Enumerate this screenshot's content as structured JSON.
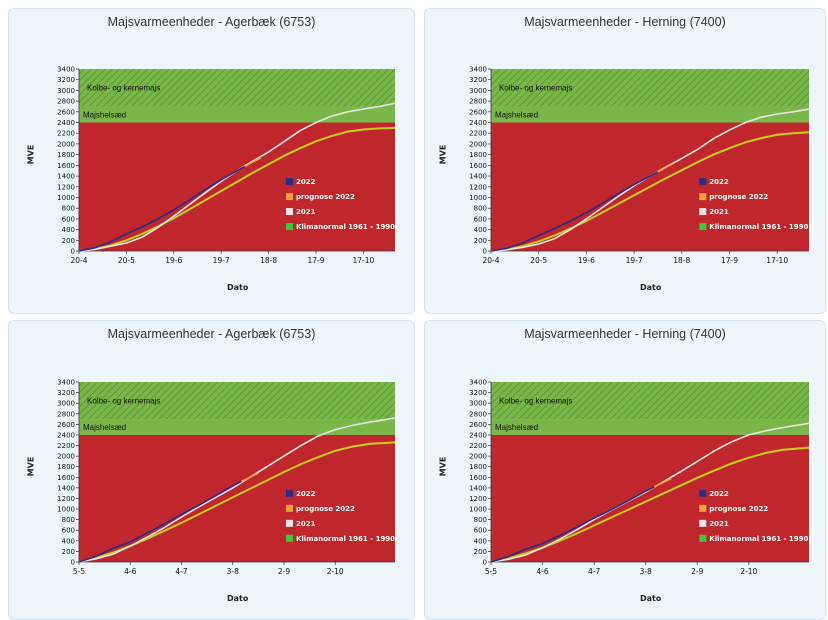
{
  "colors": {
    "zone_red": "#c0272d",
    "zone_green": "#7ab648",
    "zone_hatch": "#5a9a3a",
    "series_2022": "#2b2a86",
    "series_prognose": "#f5a040",
    "series_2021": "#e6e6e6",
    "series_normal": "#c9cc1d",
    "legend_normal": "#33cc33"
  },
  "zones": {
    "upper_label": "Kolbe- og kernemajs",
    "lower_label": "Majshelsæd"
  },
  "chart_data": [
    {
      "type": "line",
      "title": "Majsvarmeenheder - Agerbæk (6753)",
      "xlabel": "Dato",
      "ylabel": "MVE",
      "ylim": [
        0,
        3400
      ],
      "yticks": [
        0,
        200,
        400,
        600,
        800,
        1000,
        1200,
        1400,
        1600,
        1800,
        2000,
        2200,
        2400,
        2600,
        2800,
        3000,
        3200,
        3400
      ],
      "xticks": [
        "20-4",
        "20-5",
        "19-6",
        "19-7",
        "18-8",
        "17-9",
        "17-10"
      ],
      "xtick_days": [
        0,
        30,
        60,
        90,
        120,
        150,
        180
      ],
      "xlim_days": [
        0,
        200
      ],
      "zone_bounds": [
        2400,
        2700
      ],
      "legend": [
        "2022",
        "prognose 2022",
        "2021",
        "Klimanormal 1961 - 1990"
      ],
      "series": [
        {
          "name": "2022",
          "x": [
            0,
            10,
            20,
            30,
            40,
            50,
            60,
            70,
            80,
            90,
            100,
            105
          ],
          "y": [
            0,
            60,
            170,
            320,
            450,
            600,
            770,
            950,
            1150,
            1330,
            1500,
            1580
          ]
        },
        {
          "name": "prognose 2022",
          "x": [
            105,
            110,
            115
          ],
          "y": [
            1580,
            1660,
            1740
          ]
        },
        {
          "name": "2021",
          "x": [
            0,
            10,
            20,
            30,
            40,
            50,
            60,
            70,
            80,
            90,
            100,
            110,
            120,
            130,
            140,
            150,
            160,
            170,
            180,
            190,
            200
          ],
          "y": [
            0,
            30,
            90,
            150,
            260,
            440,
            650,
            870,
            1090,
            1300,
            1500,
            1680,
            1850,
            2050,
            2250,
            2400,
            2520,
            2600,
            2650,
            2700,
            2760
          ]
        },
        {
          "name": "Klimanormal 1961 - 1990",
          "x": [
            0,
            10,
            20,
            30,
            40,
            50,
            60,
            70,
            80,
            90,
            100,
            110,
            120,
            130,
            140,
            150,
            160,
            170,
            180,
            190,
            200
          ],
          "y": [
            0,
            40,
            100,
            200,
            320,
            460,
            610,
            780,
            950,
            1120,
            1290,
            1460,
            1620,
            1780,
            1920,
            2050,
            2150,
            2230,
            2270,
            2290,
            2300
          ]
        }
      ]
    },
    {
      "type": "line",
      "title": "Majsvarmeenheder - Herning (7400)",
      "xlabel": "Dato",
      "ylabel": "MVE",
      "ylim": [
        0,
        3400
      ],
      "yticks": [
        0,
        200,
        400,
        600,
        800,
        1000,
        1200,
        1400,
        1600,
        1800,
        2000,
        2200,
        2400,
        2600,
        2800,
        3000,
        3200,
        3400
      ],
      "xticks": [
        "20-4",
        "20-5",
        "19-6",
        "19-7",
        "18-8",
        "17-9",
        "17-10"
      ],
      "xtick_days": [
        0,
        30,
        60,
        90,
        120,
        150,
        180
      ],
      "xlim_days": [
        0,
        200
      ],
      "zone_bounds": [
        2400,
        2700
      ],
      "legend": [
        "2022",
        "prognose 2022",
        "2021",
        "Klimanormal 1961 - 1990"
      ],
      "series": [
        {
          "name": "2022",
          "x": [
            0,
            10,
            20,
            30,
            40,
            50,
            60,
            70,
            80,
            90,
            100,
            105
          ],
          "y": [
            0,
            50,
            150,
            290,
            420,
            560,
            720,
            890,
            1070,
            1240,
            1400,
            1480
          ]
        },
        {
          "name": "prognose 2022",
          "x": [
            105,
            110,
            115
          ],
          "y": [
            1480,
            1560,
            1640
          ]
        },
        {
          "name": "2021",
          "x": [
            0,
            10,
            20,
            30,
            40,
            50,
            60,
            70,
            80,
            90,
            100,
            110,
            120,
            130,
            140,
            150,
            160,
            170,
            180,
            190,
            200
          ],
          "y": [
            0,
            20,
            70,
            130,
            230,
            400,
            600,
            810,
            1020,
            1220,
            1400,
            1570,
            1730,
            1900,
            2100,
            2260,
            2400,
            2500,
            2560,
            2600,
            2650
          ]
        },
        {
          "name": "Klimanormal 1961 - 1990",
          "x": [
            0,
            10,
            20,
            30,
            40,
            50,
            60,
            70,
            80,
            90,
            100,
            110,
            120,
            130,
            140,
            150,
            160,
            170,
            180,
            190,
            200
          ],
          "y": [
            0,
            30,
            90,
            180,
            290,
            420,
            560,
            720,
            880,
            1040,
            1200,
            1360,
            1510,
            1660,
            1800,
            1920,
            2030,
            2110,
            2170,
            2200,
            2220
          ]
        }
      ]
    },
    {
      "type": "line",
      "title": "Majsvarmeenheder - Agerbæk (6753)",
      "xlabel": "Dato",
      "ylabel": "MVE",
      "ylim": [
        0,
        3400
      ],
      "yticks": [
        0,
        200,
        400,
        600,
        800,
        1000,
        1200,
        1400,
        1600,
        1800,
        2000,
        2200,
        2400,
        2600,
        2800,
        3000,
        3200,
        3400
      ],
      "xticks": [
        "5-5",
        "4-6",
        "4-7",
        "3-8",
        "2-9",
        "2-10"
      ],
      "xtick_days": [
        0,
        30,
        60,
        90,
        120,
        150
      ],
      "xlim_days": [
        0,
        185
      ],
      "zone_bounds": [
        2400,
        2700
      ],
      "legend": [
        "2022",
        "prognose 2022",
        "2021",
        "Klimanormal 1961 - 1990"
      ],
      "series": [
        {
          "name": "2022",
          "x": [
            0,
            10,
            20,
            30,
            40,
            50,
            60,
            70,
            80,
            90,
            95
          ],
          "y": [
            0,
            110,
            260,
            380,
            550,
            720,
            900,
            1070,
            1250,
            1440,
            1520
          ]
        },
        {
          "name": "prognose 2022",
          "x": [
            95,
            100,
            105
          ],
          "y": [
            1520,
            1600,
            1680
          ]
        },
        {
          "name": "2021",
          "x": [
            0,
            10,
            20,
            30,
            40,
            50,
            60,
            70,
            80,
            90,
            100,
            110,
            120,
            130,
            140,
            150,
            160,
            170,
            185
          ],
          "y": [
            0,
            60,
            150,
            300,
            470,
            650,
            850,
            1040,
            1220,
            1400,
            1600,
            1800,
            2000,
            2200,
            2380,
            2500,
            2580,
            2640,
            2720
          ]
        },
        {
          "name": "Klimanormal 1961 - 1990",
          "x": [
            0,
            10,
            20,
            30,
            40,
            50,
            60,
            70,
            80,
            90,
            100,
            110,
            120,
            130,
            140,
            150,
            160,
            170,
            185
          ],
          "y": [
            0,
            80,
            180,
            300,
            440,
            590,
            740,
            900,
            1060,
            1220,
            1380,
            1540,
            1700,
            1850,
            1980,
            2100,
            2180,
            2230,
            2260
          ]
        }
      ]
    },
    {
      "type": "line",
      "title": "Majsvarmeenheder - Herning (7400)",
      "xlabel": "Dato",
      "ylabel": "MVE",
      "ylim": [
        0,
        3400
      ],
      "yticks": [
        0,
        200,
        400,
        600,
        800,
        1000,
        1200,
        1400,
        1600,
        1800,
        2000,
        2200,
        2400,
        2600,
        2800,
        3000,
        3200,
        3400
      ],
      "xticks": [
        "5-5",
        "4-6",
        "4-7",
        "3-8",
        "2-9",
        "2-10"
      ],
      "xtick_days": [
        0,
        30,
        60,
        90,
        120,
        150
      ],
      "xlim_days": [
        0,
        185
      ],
      "zone_bounds": [
        2400,
        2700
      ],
      "legend": [
        "2022",
        "prognose 2022",
        "2021",
        "Klimanormal 1961 - 1990"
      ],
      "series": [
        {
          "name": "2022",
          "x": [
            0,
            10,
            20,
            30,
            40,
            50,
            60,
            70,
            80,
            90,
            95
          ],
          "y": [
            0,
            100,
            240,
            350,
            500,
            660,
            830,
            990,
            1160,
            1340,
            1420
          ]
        },
        {
          "name": "prognose 2022",
          "x": [
            95,
            100,
            105
          ],
          "y": [
            1420,
            1500,
            1580
          ]
        },
        {
          "name": "2021",
          "x": [
            0,
            10,
            20,
            30,
            40,
            50,
            60,
            70,
            80,
            90,
            100,
            110,
            120,
            130,
            140,
            150,
            160,
            170,
            185
          ],
          "y": [
            0,
            50,
            130,
            270,
            430,
            610,
            800,
            980,
            1150,
            1320,
            1510,
            1700,
            1900,
            2100,
            2270,
            2400,
            2480,
            2540,
            2620
          ]
        },
        {
          "name": "Klimanormal 1961 - 1990",
          "x": [
            0,
            10,
            20,
            30,
            40,
            50,
            60,
            70,
            80,
            90,
            100,
            110,
            120,
            130,
            140,
            150,
            160,
            170,
            185
          ],
          "y": [
            0,
            70,
            160,
            270,
            400,
            540,
            690,
            840,
            990,
            1140,
            1290,
            1440,
            1590,
            1730,
            1860,
            1970,
            2060,
            2120,
            2160
          ]
        }
      ]
    }
  ]
}
